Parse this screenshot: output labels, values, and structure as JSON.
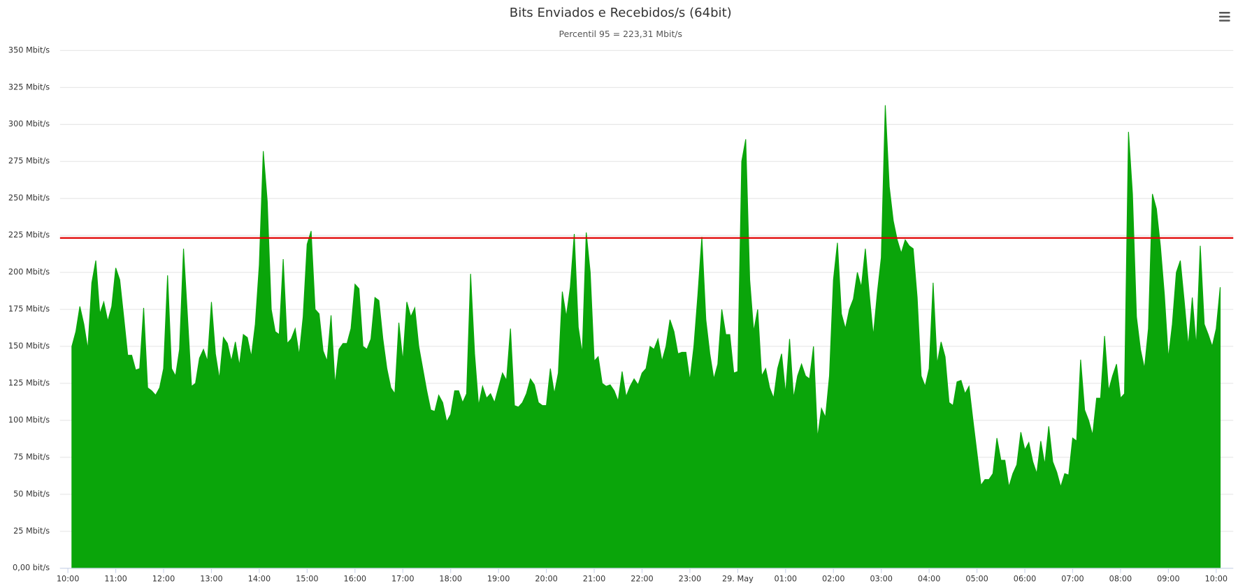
{
  "chart_data": {
    "type": "area",
    "title": "Bits Enviados e Recebidos/s (64bit)",
    "subtitle": "Percentil 95 = 223,31 Mbit/s",
    "color": "#0aa50a",
    "plot_line": {
      "value": 223.31,
      "color": "#e00000"
    },
    "ylim": [
      0,
      350
    ],
    "yticks": [
      {
        "value": 0,
        "label": "0,00 bit/s"
      },
      {
        "value": 25,
        "label": "25 Mbit/s"
      },
      {
        "value": 50,
        "label": "50 Mbit/s"
      },
      {
        "value": 75,
        "label": "75 Mbit/s"
      },
      {
        "value": 100,
        "label": "100 Mbit/s"
      },
      {
        "value": 125,
        "label": "125 Mbit/s"
      },
      {
        "value": 150,
        "label": "150 Mbit/s"
      },
      {
        "value": 175,
        "label": "175 Mbit/s"
      },
      {
        "value": 200,
        "label": "200 Mbit/s"
      },
      {
        "value": 225,
        "label": "225 Mbit/s"
      },
      {
        "value": 250,
        "label": "250 Mbit/s"
      },
      {
        "value": 275,
        "label": "275 Mbit/s"
      },
      {
        "value": 300,
        "label": "300 Mbit/s"
      },
      {
        "value": 325,
        "label": "325 Mbit/s"
      },
      {
        "value": 350,
        "label": "350 Mbit/s"
      }
    ],
    "xticks": [
      "10:00",
      "11:00",
      "12:00",
      "13:00",
      "14:00",
      "15:00",
      "16:00",
      "17:00",
      "18:00",
      "19:00",
      "20:00",
      "21:00",
      "22:00",
      "23:00",
      {
        "value": "00:00",
        "label": "29. May"
      },
      "01:00",
      "02:00",
      "03:00",
      "04:00",
      "05:00",
      "06:00",
      "07:00",
      "08:00",
      "09:00",
      "10:00"
    ],
    "grid": true,
    "x": [
      "10:05",
      "10:10",
      "10:15",
      "10:20",
      "10:25",
      "10:30",
      "10:35",
      "10:40",
      "10:45",
      "10:50",
      "10:55",
      "11:00",
      "11:05",
      "11:10",
      "11:15",
      "11:20",
      "11:25",
      "11:30",
      "11:35",
      "11:40",
      "11:45",
      "11:50",
      "11:55",
      "12:00",
      "12:05",
      "12:10",
      "12:15",
      "12:20",
      "12:25",
      "12:30",
      "12:35",
      "12:40",
      "12:45",
      "12:50",
      "12:55",
      "13:00",
      "13:05",
      "13:10",
      "13:15",
      "13:20",
      "13:25",
      "13:30",
      "13:35",
      "13:40",
      "13:45",
      "13:50",
      "13:55",
      "14:00",
      "14:05",
      "14:10",
      "14:15",
      "14:20",
      "14:25",
      "14:30",
      "14:35",
      "14:40",
      "14:45",
      "14:50",
      "14:55",
      "15:00",
      "15:05",
      "15:10",
      "15:15",
      "15:20",
      "15:25",
      "15:30",
      "15:35",
      "15:40",
      "15:45",
      "15:50",
      "15:55",
      "16:00",
      "16:05",
      "16:10",
      "16:15",
      "16:20",
      "16:25",
      "16:30",
      "16:35",
      "16:40",
      "16:45",
      "16:50",
      "16:55",
      "17:00",
      "17:05",
      "17:10",
      "17:15",
      "17:20",
      "17:25",
      "17:30",
      "17:35",
      "17:40",
      "17:45",
      "17:50",
      "17:55",
      "18:00",
      "18:05",
      "18:10",
      "18:15",
      "18:20",
      "18:25",
      "18:30",
      "18:35",
      "18:40",
      "18:45",
      "18:50",
      "18:55",
      "19:00",
      "19:05",
      "19:10",
      "19:15",
      "19:20",
      "19:25",
      "19:30",
      "19:35",
      "19:40",
      "19:45",
      "19:50",
      "19:55",
      "20:00",
      "20:05",
      "20:10",
      "20:15",
      "20:20",
      "20:25",
      "20:30",
      "20:35",
      "20:40",
      "20:45",
      "20:50",
      "20:55",
      "21:00",
      "21:05",
      "21:10",
      "21:15",
      "21:20",
      "21:25",
      "21:30",
      "21:35",
      "21:40",
      "21:45",
      "21:50",
      "21:55",
      "22:00",
      "22:05",
      "22:10",
      "22:15",
      "22:20",
      "22:25",
      "22:30",
      "22:35",
      "22:40",
      "22:45",
      "22:50",
      "22:55",
      "23:00",
      "23:05",
      "23:10",
      "23:15",
      "23:20",
      "23:25",
      "23:30",
      "23:35",
      "23:40",
      "23:45",
      "23:50",
      "23:55",
      "00:00",
      "00:05",
      "00:10",
      "00:15",
      "00:20",
      "00:25",
      "00:30",
      "00:35",
      "00:40",
      "00:45",
      "00:50",
      "00:55",
      "01:00",
      "01:05",
      "01:10",
      "01:15",
      "01:20",
      "01:25",
      "01:30",
      "01:35",
      "01:40",
      "01:45",
      "01:50",
      "01:55",
      "02:00",
      "02:05",
      "02:10",
      "02:15",
      "02:20",
      "02:25",
      "02:30",
      "02:35",
      "02:40",
      "02:45",
      "02:50",
      "02:55",
      "03:00",
      "03:05",
      "03:10",
      "03:15",
      "03:20",
      "03:25",
      "03:30",
      "03:35",
      "03:40",
      "03:45",
      "03:50",
      "03:55",
      "04:00",
      "04:05",
      "04:10",
      "04:15",
      "04:20",
      "04:25",
      "04:30",
      "04:35",
      "04:40",
      "04:45",
      "04:50",
      "04:55",
      "05:00",
      "05:05",
      "05:10",
      "05:15",
      "05:20",
      "05:25",
      "05:30",
      "05:35",
      "05:40",
      "05:45",
      "05:50",
      "05:55",
      "06:00",
      "06:05",
      "06:10",
      "06:15",
      "06:20",
      "06:25",
      "06:30",
      "06:35",
      "06:40",
      "06:45",
      "06:50",
      "06:55",
      "07:00",
      "07:05",
      "07:10",
      "07:15",
      "07:20",
      "07:25",
      "07:30",
      "07:35",
      "07:40",
      "07:45",
      "07:50",
      "07:55",
      "08:00",
      "08:05",
      "08:10",
      "08:15",
      "08:20",
      "08:25",
      "08:30",
      "08:35",
      "08:40",
      "08:45",
      "08:50",
      "08:55",
      "09:00",
      "09:05",
      "09:10",
      "09:15",
      "09:20",
      "09:25",
      "09:30",
      "09:35",
      "09:40",
      "09:45",
      "09:50",
      "09:55",
      "10:00",
      "10:05"
    ],
    "values": [
      150,
      160,
      177,
      165,
      148,
      193,
      208,
      172,
      180,
      167,
      177,
      203,
      195,
      170,
      144,
      144,
      134,
      135,
      176,
      122,
      120,
      117,
      122,
      135,
      198,
      135,
      130,
      148,
      216,
      170,
      123,
      125,
      142,
      148,
      140,
      180,
      145,
      128,
      156,
      152,
      140,
      153,
      137,
      158,
      156,
      143,
      165,
      205,
      282,
      248,
      175,
      160,
      158,
      209,
      152,
      155,
      162,
      144,
      170,
      219,
      228,
      175,
      172,
      147,
      140,
      171,
      124,
      148,
      152,
      152,
      162,
      192,
      189,
      150,
      148,
      155,
      183,
      181,
      155,
      135,
      122,
      118,
      166,
      140,
      180,
      170,
      176,
      150,
      135,
      120,
      107,
      106,
      117,
      112,
      99,
      104,
      120,
      120,
      112,
      118,
      199,
      145,
      110,
      123,
      115,
      118,
      112,
      122,
      132,
      127,
      162,
      110,
      109,
      112,
      118,
      128,
      124,
      112,
      110,
      110,
      135,
      118,
      132,
      187,
      170,
      190,
      226,
      163,
      145,
      227,
      200,
      140,
      143,
      125,
      123,
      124,
      120,
      113,
      133,
      116,
      123,
      128,
      124,
      132,
      135,
      150,
      148,
      155,
      140,
      150,
      168,
      160,
      145,
      146,
      146,
      127,
      150,
      185,
      224,
      168,
      145,
      128,
      138,
      175,
      158,
      158,
      132,
      133,
      275,
      290,
      195,
      160,
      175,
      130,
      135,
      122,
      115,
      135,
      145,
      118,
      155,
      115,
      130,
      138,
      130,
      128,
      150,
      88,
      108,
      102,
      130,
      195,
      220,
      172,
      162,
      175,
      182,
      200,
      190,
      216,
      185,
      157,
      186,
      210,
      313,
      258,
      235,
      222,
      213,
      222,
      218,
      216,
      183,
      130,
      123,
      135,
      193,
      138,
      153,
      143,
      112,
      110,
      126,
      127,
      118,
      123,
      100,
      78,
      56,
      60,
      60,
      64,
      88,
      73,
      73,
      55,
      64,
      70,
      92,
      80,
      85,
      72,
      64,
      86,
      70,
      96,
      72,
      65,
      55,
      64,
      63,
      88,
      86,
      141,
      107,
      100,
      90,
      115,
      115,
      157,
      120,
      130,
      138,
      115,
      118,
      295,
      253,
      170,
      148,
      135,
      162,
      253,
      243,
      218,
      185,
      142,
      165,
      200,
      208,
      180,
      150,
      183,
      150,
      218,
      165,
      158,
      150,
      162,
      190
    ]
  }
}
